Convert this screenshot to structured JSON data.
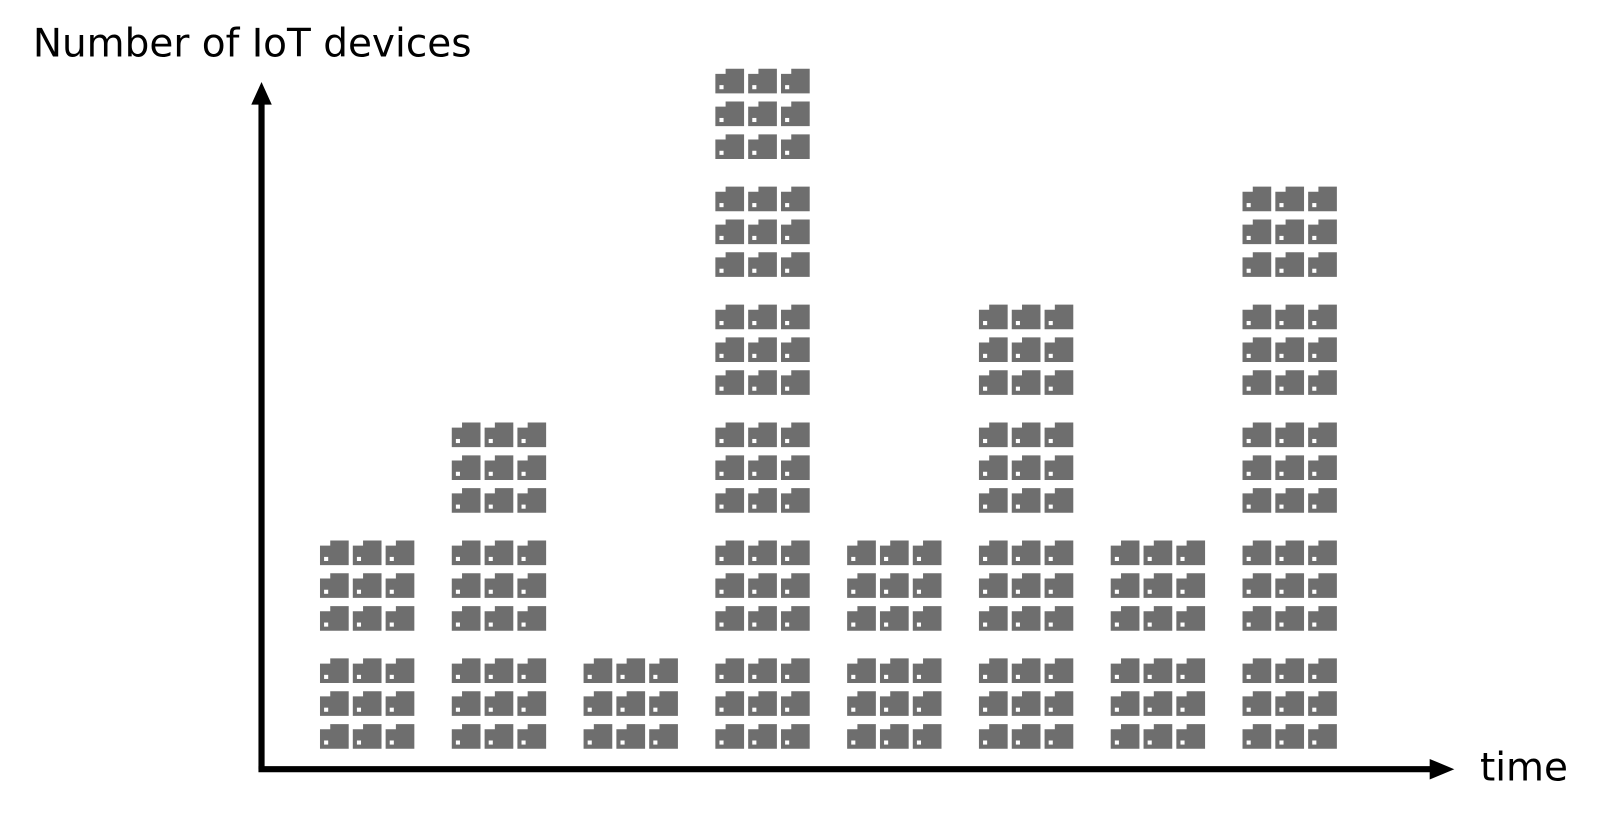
{
  "chart_data": {
    "type": "pictogram",
    "y_label": "Number of IoT devices",
    "x_label": "time",
    "categories": [
      null,
      null,
      null,
      null,
      null,
      null,
      null,
      null
    ],
    "values": [
      2,
      3,
      1,
      6,
      2,
      4,
      2,
      5
    ],
    "color": "#6e6e6e"
  }
}
